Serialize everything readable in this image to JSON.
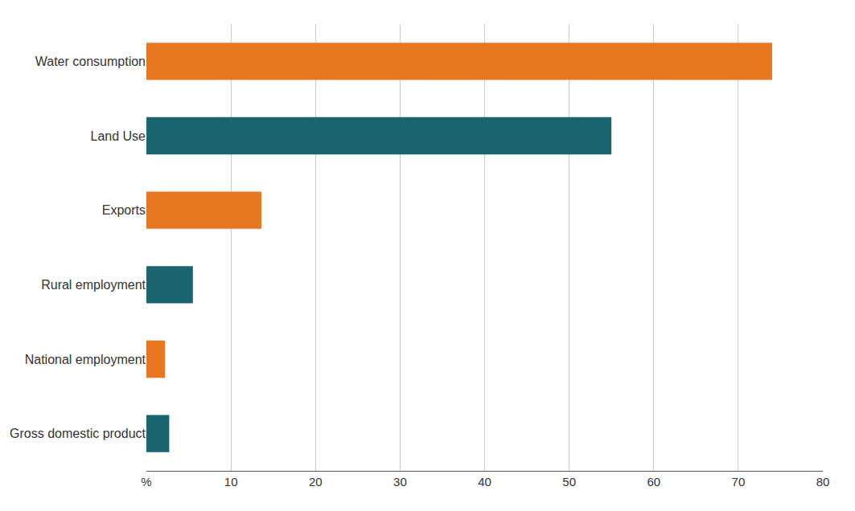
{
  "chart_data": {
    "type": "bar",
    "orientation": "horizontal",
    "categories": [
      "Water consumption",
      "Land Use",
      "Exports",
      "Rural employment",
      "National employment",
      "Gross domestic product"
    ],
    "values": [
      74,
      55,
      13.6,
      5.5,
      2.2,
      2.7
    ],
    "colors": [
      "#E87722",
      "#1A6570",
      "#E87722",
      "#1A6570",
      "#E87722",
      "#1A6570"
    ],
    "xlim": [
      0,
      80
    ],
    "xticks": [
      {
        "value": 0,
        "label": "%"
      },
      10,
      20,
      30,
      40,
      50,
      60,
      70,
      80
    ],
    "grid": true
  }
}
